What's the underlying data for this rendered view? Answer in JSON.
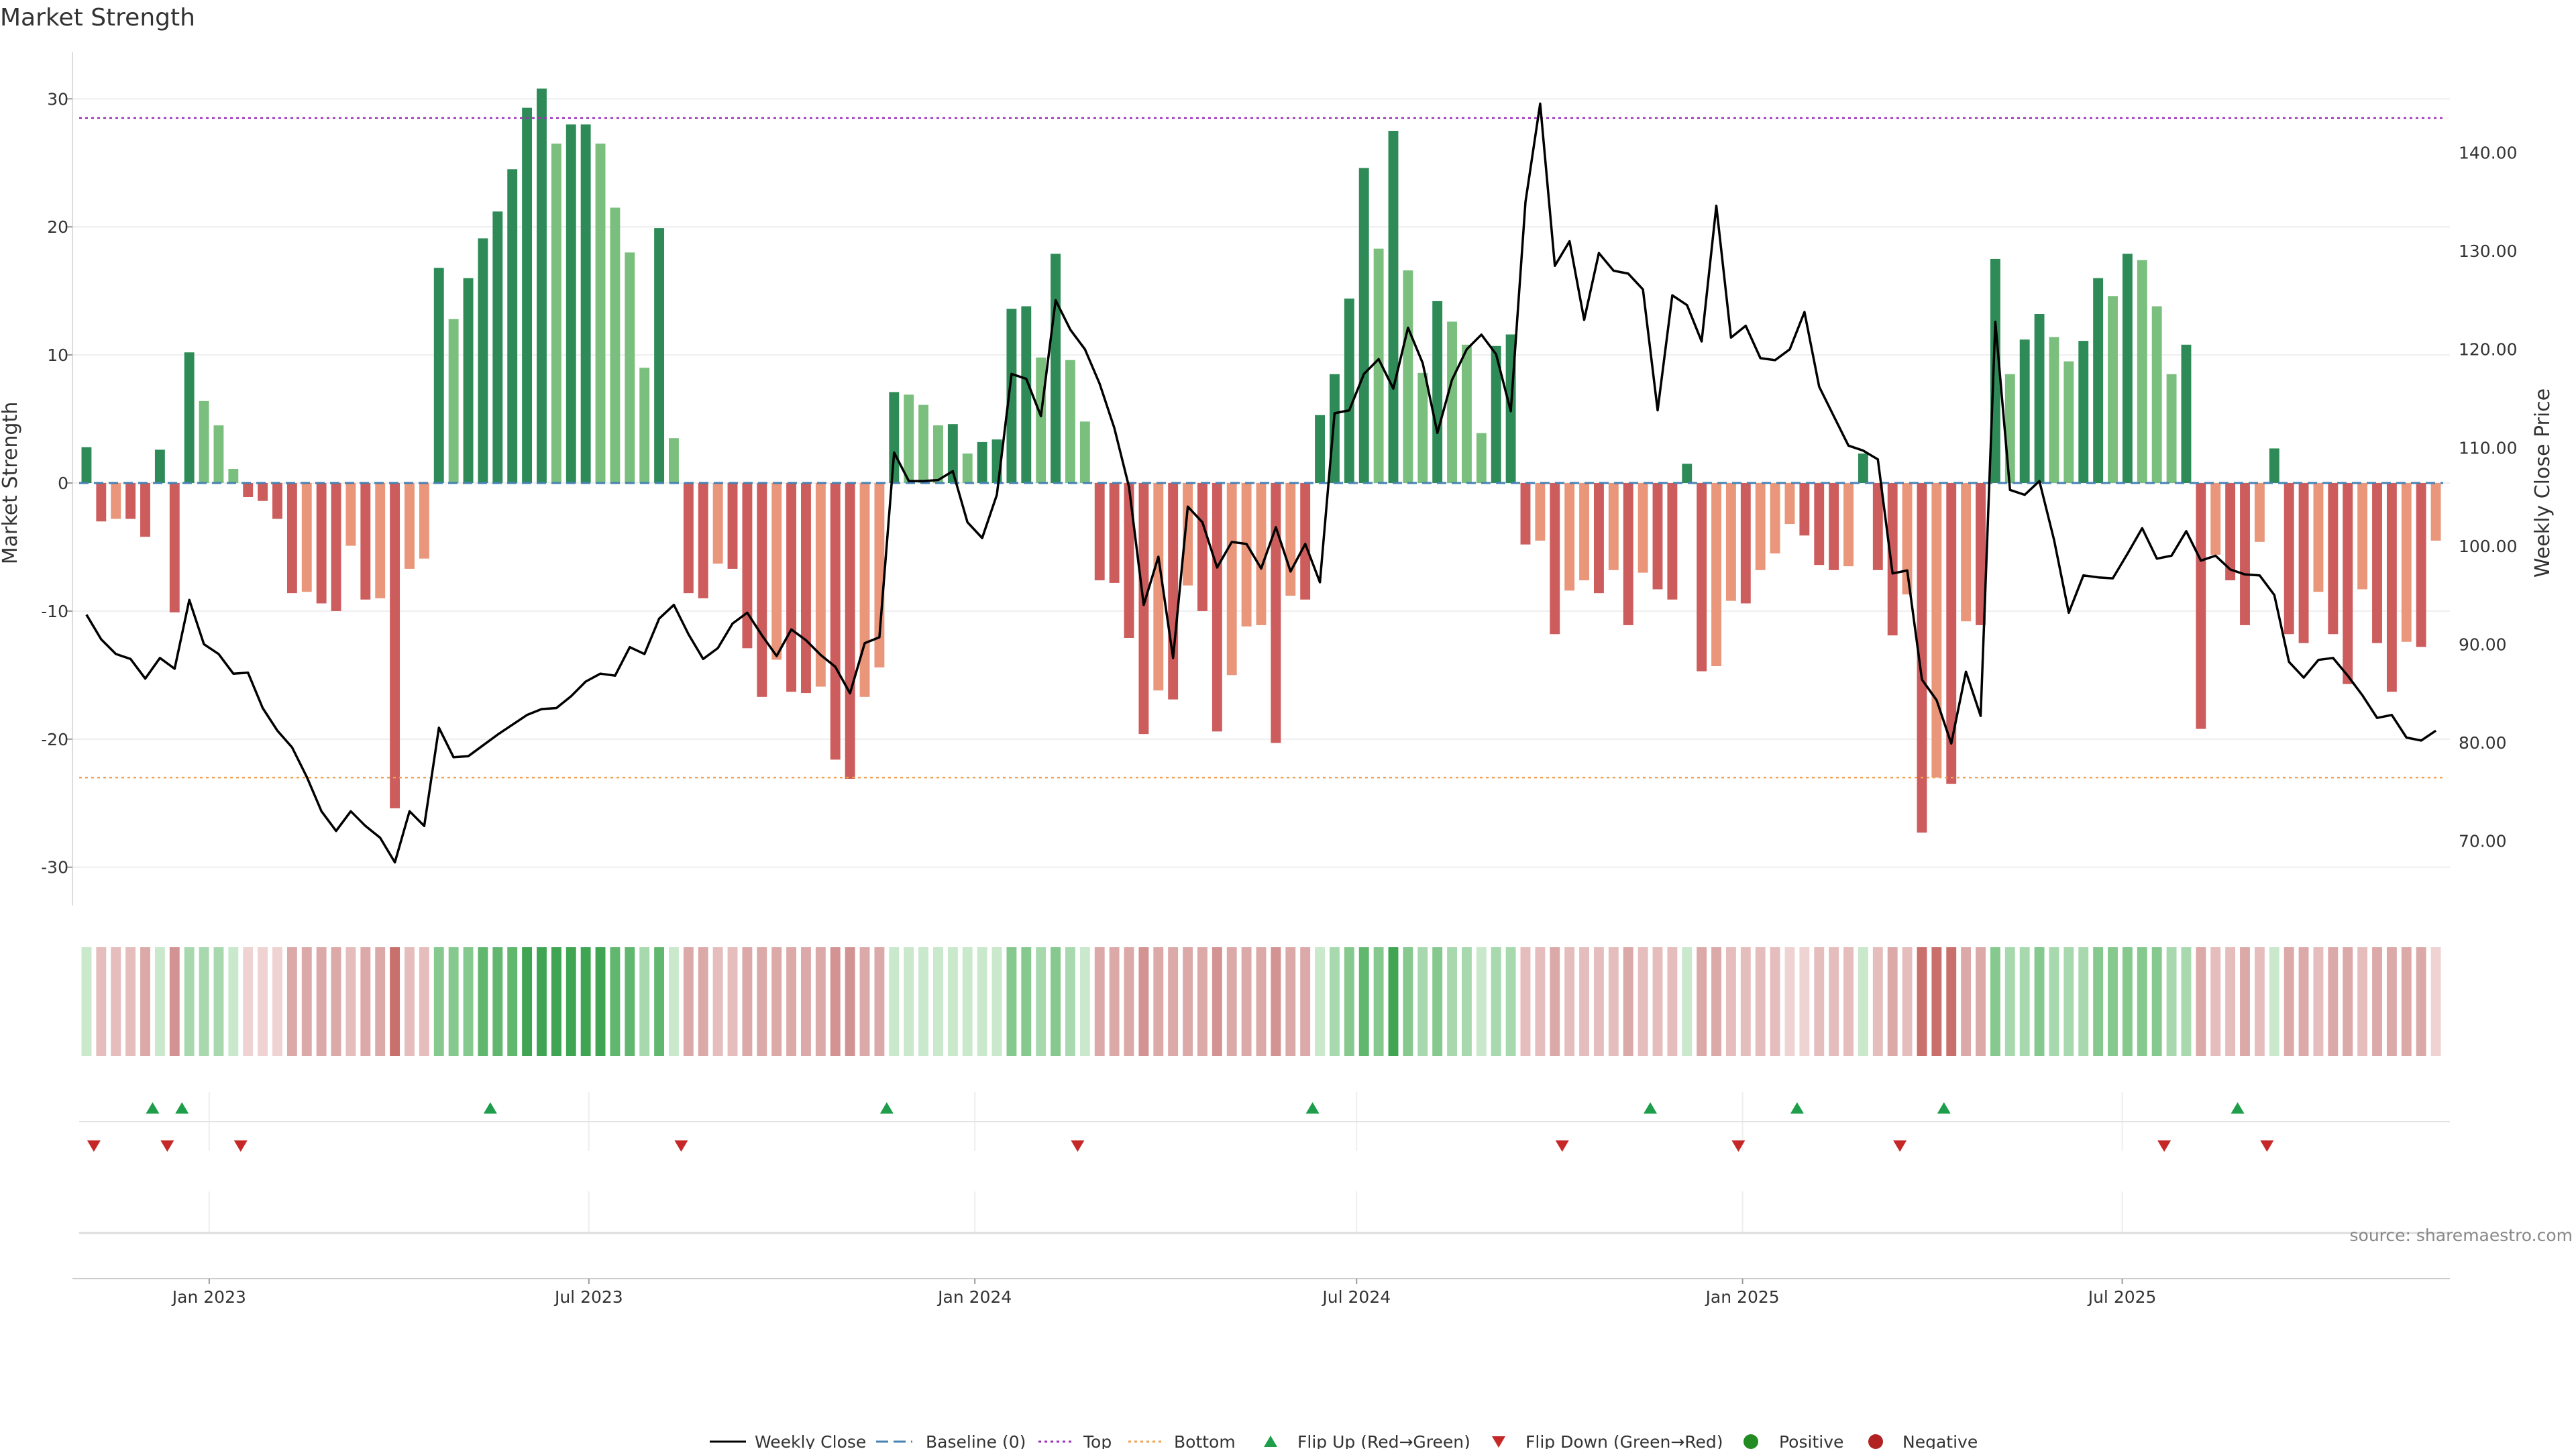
{
  "chart_data": {
    "type": "bar",
    "title": "Market Strength",
    "ylabel_left": "Market Strength",
    "ylabel_right": "Weekly Close Price",
    "source": "source: sharemaestro.com",
    "ylim_left": [
      -33,
      33
    ],
    "ylim_right": [
      63.4,
      149.4
    ],
    "yticks_left": [
      30,
      20,
      10,
      0,
      -10,
      -20,
      -30
    ],
    "yticks_right": [
      "140.00",
      "130.00",
      "120.00",
      "110.00",
      "100.00",
      "90.00",
      "80.00",
      "70.00"
    ],
    "yticks_right_values": [
      140,
      130,
      120,
      110,
      100,
      90,
      80,
      70
    ],
    "top_line": 28.5,
    "bottom_line": -23,
    "x_start": "2022-10-31",
    "x_ticks": [
      {
        "label": "Jan 2023",
        "date": "2023-01-01"
      },
      {
        "label": "Jul 2023",
        "date": "2023-07-01"
      },
      {
        "label": "Jan 2024",
        "date": "2024-01-01"
      },
      {
        "label": "Jul 2024",
        "date": "2024-07-01"
      },
      {
        "label": "Jan 2025",
        "date": "2025-01-01"
      },
      {
        "label": "Jul 2025",
        "date": "2025-07-01"
      }
    ],
    "strength": [
      2.8,
      -3,
      -2.8,
      -2.8,
      -4.2,
      2.6,
      -10.1,
      10.2,
      6.4,
      4.5,
      1.1,
      -1.1,
      -1.4,
      -2.8,
      -8.6,
      -8.5,
      -9.4,
      -10,
      -4.9,
      -9.1,
      -9,
      -25.4,
      -6.7,
      -5.9,
      16.8,
      12.8,
      16,
      19.1,
      21.2,
      24.5,
      29.3,
      30.8,
      26.5,
      28,
      28,
      26.5,
      21.5,
      18,
      9,
      19.9,
      3.5,
      -8.6,
      -9,
      -6.3,
      -6.7,
      -12.9,
      -16.7,
      -13.8,
      -16.3,
      -16.4,
      -15.9,
      -21.6,
      -23.1,
      -16.7,
      -14.4,
      7.1,
      6.9,
      6.1,
      4.5,
      4.6,
      2.3,
      3.2,
      3.4,
      13.6,
      13.8,
      9.8,
      17.9,
      9.6,
      4.8,
      -7.6,
      -7.8,
      -12.1,
      -19.6,
      -16.2,
      -16.9,
      -8,
      -10,
      -19.4,
      -15,
      -11.2,
      -11.1,
      -20.3,
      -8.8,
      -9.1,
      5.3,
      8.5,
      14.4,
      24.6,
      18.3,
      27.5,
      16.6,
      8.6,
      14.2,
      12.6,
      10.8,
      3.9,
      10.7,
      11.6,
      -4.8,
      -4.5,
      -11.8,
      -8.4,
      -7.6,
      -8.6,
      -6.8,
      -11.1,
      -7,
      -8.3,
      -9.1,
      1.5,
      -14.7,
      -14.3,
      -9.2,
      -9.4,
      -6.8,
      -5.5,
      -3.2,
      -4.1,
      -6.4,
      -6.8,
      -6.5,
      2.3,
      -6.8,
      -11.9,
      -8.7,
      -27.3,
      -23,
      -23.5,
      -10.8,
      -11.1,
      17.5,
      8.5,
      11.2,
      13.2,
      11.4,
      9.5,
      11.1,
      16,
      14.6,
      17.9,
      17.4,
      13.8,
      8.5,
      10.8,
      -19.2,
      -5.6,
      -7.6,
      -11.1,
      -4.6,
      2.7,
      -11.8,
      -12.5,
      -8.5,
      -11.8,
      -15.7,
      -8.3,
      -12.5,
      -16.3,
      -12.4,
      -12.8,
      -4.5
    ],
    "price": [
      93,
      90.5,
      89,
      88.5,
      86.5,
      88.6,
      87.5,
      94.5,
      90,
      89,
      87,
      87.1,
      83.5,
      81.2,
      79.5,
      76.5,
      73,
      71,
      73,
      71.5,
      70.3,
      67.8,
      73,
      71.5,
      81.5,
      78.5,
      78.6,
      79.7,
      80.8,
      81.8,
      82.8,
      83.4,
      83.5,
      84.7,
      86.2,
      87,
      86.8,
      89.7,
      89,
      92.6,
      94,
      91,
      88.5,
      89.6,
      92.1,
      93.2,
      90.9,
      88.8,
      91.5,
      90.4,
      88.9,
      87.7,
      85,
      90.1,
      90.7,
      109.5,
      106.6,
      106.6,
      106.7,
      107.6,
      102.4,
      100.8,
      105.2,
      117.5,
      117,
      113.2,
      125,
      122,
      120,
      116.5,
      112,
      106,
      94,
      98.9,
      88.6,
      104,
      102.4,
      97.8,
      100.4,
      100.2,
      97.7,
      101.9,
      97.4,
      100.2,
      96.3,
      113.5,
      113.8,
      117.5,
      119,
      116,
      122.2,
      118.6,
      111.5,
      116.9,
      120,
      121.5,
      119.5,
      113.7,
      135,
      145,
      128.5,
      131,
      123,
      129.8,
      128,
      127.7,
      126.1,
      113.8,
      125.5,
      124.5,
      120.8,
      134.6,
      121.2,
      122.4,
      119.1,
      118.9,
      120,
      123.8,
      116.2,
      113.2,
      110.2,
      109.7,
      108.8,
      97.2,
      97.5,
      86.4,
      84.3,
      79.9,
      87.2,
      82.7,
      122.8,
      105.7,
      105.2,
      106.6,
      100.6,
      93.2,
      97,
      96.8,
      96.7,
      99.2,
      101.8,
      98.7,
      99,
      101.5,
      98.5,
      99,
      97.6,
      97.1,
      97,
      95,
      88.2,
      86.6,
      88.4,
      88.6,
      86.8,
      84.8,
      82.5,
      82.8,
      80.5,
      80.2,
      81.2
    ],
    "heatmap_levels": [
      1,
      2,
      2,
      2,
      3,
      1,
      4,
      2,
      2,
      2,
      1,
      1,
      1,
      1,
      3,
      3,
      3,
      3,
      2,
      3,
      3,
      5,
      2,
      2,
      3,
      3,
      3,
      4,
      4,
      4,
      5,
      5,
      5,
      5,
      5,
      5,
      4,
      4,
      2,
      4,
      1,
      3,
      3,
      2,
      2,
      3,
      3,
      3,
      3,
      3,
      3,
      4,
      4,
      3,
      3,
      1,
      1,
      1,
      1,
      1,
      1,
      1,
      1,
      3,
      3,
      2,
      3,
      2,
      1,
      3,
      3,
      3,
      4,
      3,
      3,
      3,
      3,
      4,
      3,
      3,
      3,
      4,
      3,
      3,
      1,
      2,
      3,
      4,
      3,
      5,
      3,
      2,
      3,
      2,
      2,
      1,
      2,
      2,
      2,
      2,
      3,
      2,
      2,
      2,
      2,
      3,
      2,
      2,
      2,
      1,
      3,
      3,
      2,
      2,
      2,
      2,
      1,
      1,
      2,
      2,
      2,
      1,
      2,
      3,
      2,
      5,
      5,
      5,
      3,
      3,
      3,
      2,
      2,
      3,
      2,
      2,
      2,
      3,
      3,
      3,
      3,
      3,
      2,
      2,
      3,
      2,
      2,
      3,
      2,
      1,
      3,
      3,
      2,
      3,
      3,
      2,
      3,
      3,
      3,
      3,
      1
    ],
    "flip_up_dates": [
      "2022-12-05",
      "2022-12-19",
      "2023-05-15",
      "2023-11-20",
      "2024-06-10",
      "2024-11-18",
      "2025-01-27",
      "2025-04-07",
      "2025-08-25"
    ],
    "flip_down_dates": [
      "2022-11-07",
      "2022-12-12",
      "2023-01-16",
      "2023-08-14",
      "2024-02-19",
      "2024-10-07",
      "2024-12-30",
      "2025-03-17",
      "2025-07-21",
      "2025-09-08"
    ],
    "legend": [
      "Weekly Close",
      "Baseline (0)",
      "Top",
      "Bottom",
      "Flip Up (Red→Green)",
      "Flip Down (Green→Red)",
      "Positive",
      "Negative"
    ],
    "colors": {
      "pos_strong": "#2e8b57",
      "pos_light": "#7bbf7e",
      "neg_strong": "#cd5c5c",
      "neg_light": "#e9967a",
      "price_line": "#000000",
      "baseline": "#4682b4",
      "top_line": "#9b30b8",
      "bottom_line": "#f0a050",
      "flip_up": "#1e9e4a",
      "flip_down": "#c62828",
      "positive_dot": "#228b22",
      "negative_dot": "#b22222",
      "heat_pos": [
        "#c9e8cc",
        "#a8d9ae",
        "#86c98f",
        "#62b76f",
        "#3fa553"
      ],
      "heat_neg": [
        "#efd2d2",
        "#e6bdbd",
        "#dca9a9",
        "#d49393",
        "#c9706d"
      ]
    }
  }
}
